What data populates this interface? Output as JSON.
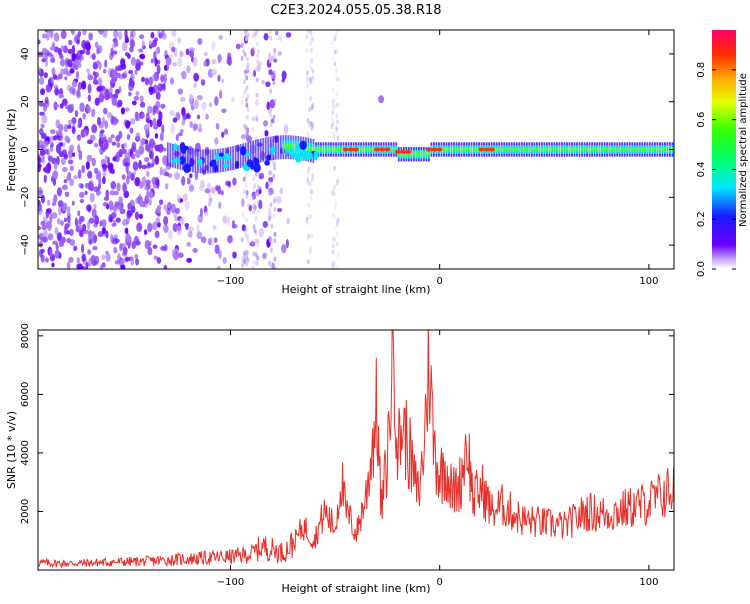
{
  "title": "C2E3.2024.055.05.38.R18",
  "colors": {
    "snr_line": "#e8302a",
    "spectrogram_base": "#7a2cf0",
    "axis": "#000000",
    "background": "#ffffff"
  },
  "chart_data": [
    {
      "type": "heatmap",
      "title": "C2E3.2024.055.05.38.R18",
      "xlabel": "Height of straight line (km)",
      "ylabel": "Frequency (Hz)",
      "xlim": [
        -192,
        112
      ],
      "ylim": [
        -50,
        50
      ],
      "x_ticks": [
        -100,
        0,
        100
      ],
      "y_ticks": [
        -40,
        -20,
        0,
        20,
        40
      ],
      "grid": false,
      "colorbar": {
        "label": "Normalized spectral amplitude",
        "range": [
          0,
          0.96
        ],
        "ticks": [
          0.0,
          0.2,
          0.4,
          0.6,
          0.8
        ],
        "colormap": "hsv (magenta-blue-cyan-green-yellow-red)"
      },
      "description_points": {
        "noise_region_x": [
          -192,
          -75
        ],
        "signal_center_frequency_hz": 0,
        "signal_onset_x": -130,
        "signal_strong_from_x": -60,
        "peak_amplitude_x": [
          -45,
          -30,
          -20,
          -5,
          20
        ]
      }
    },
    {
      "type": "line",
      "xlabel": "Height of straight line (km)",
      "ylabel": "SNR (10 * v/v)",
      "xlim": [
        -192,
        112
      ],
      "ylim": [
        0,
        8200
      ],
      "x_ticks": [
        -100,
        0,
        100
      ],
      "y_ticks": [
        2000,
        4000,
        6000,
        8000
      ],
      "grid": false,
      "series": [
        {
          "x": [
            -192,
            -180,
            -160,
            -140,
            -120,
            -100,
            -90,
            -85,
            -80,
            -75,
            -70,
            -65,
            -60,
            -55,
            -50,
            -47,
            -45,
            -42,
            -40,
            -35,
            -30,
            -28,
            -25,
            -22,
            -20,
            -18,
            -15,
            -12,
            -10,
            -8,
            -5,
            -3,
            0,
            3,
            6,
            10,
            13,
            16,
            20,
            25,
            30,
            40,
            50,
            60,
            70,
            80,
            90,
            100,
            105,
            112
          ],
          "y": [
            250,
            220,
            260,
            300,
            380,
            450,
            550,
            800,
            700,
            600,
            900,
            1500,
            1000,
            2000,
            1400,
            3200,
            2000,
            1600,
            1200,
            2600,
            5600,
            2000,
            3800,
            8200,
            4000,
            5000,
            4200,
            3000,
            2600,
            3800,
            7400,
            4400,
            3200,
            3600,
            2600,
            3000,
            4500,
            2400,
            2800,
            2000,
            2200,
            1700,
            1600,
            1500,
            2000,
            1900,
            2100,
            2300,
            2500,
            2800
          ]
        }
      ]
    }
  ]
}
